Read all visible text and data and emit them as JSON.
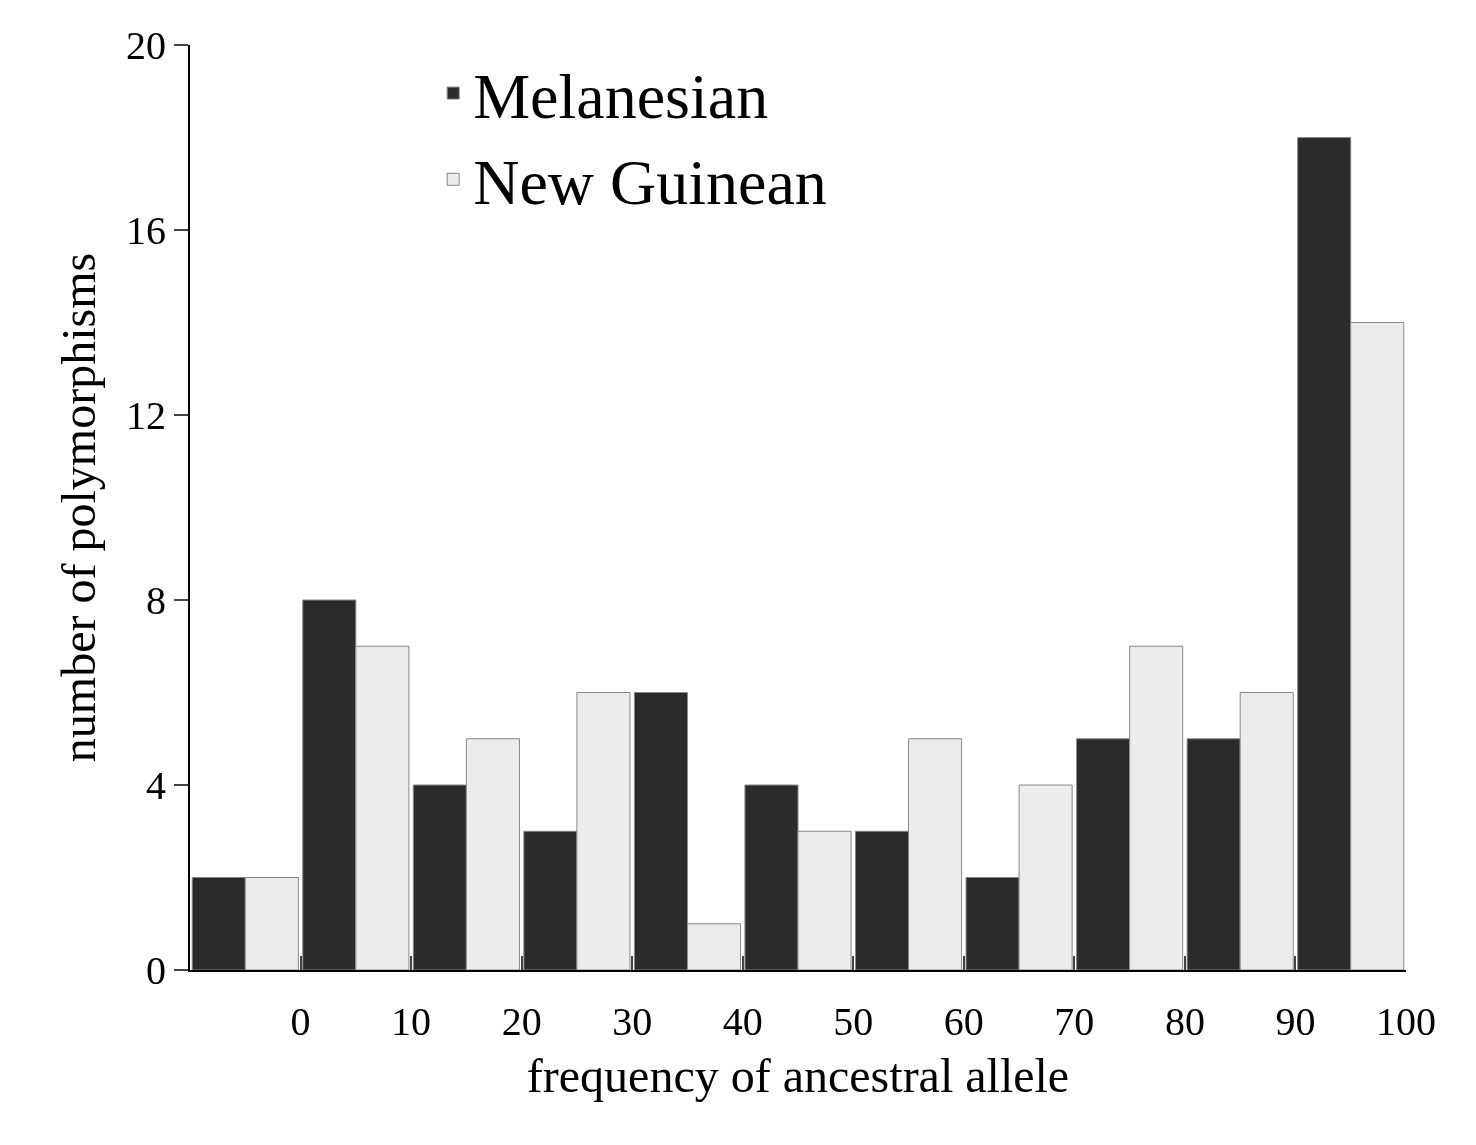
{
  "chart_data": {
    "type": "bar",
    "xlabel": "frequency of ancestral allele",
    "ylabel": "number of polymorphisms",
    "x": [
      -5,
      5,
      15,
      25,
      35,
      45,
      55,
      65,
      75,
      85,
      95
    ],
    "series": [
      {
        "name": "Melanesian",
        "color": "#2b2b2b",
        "values": [
          2,
          8,
          4,
          3,
          6,
          4,
          3,
          2,
          5,
          5,
          18
        ]
      },
      {
        "name": "New Guinean",
        "color": "#ececec",
        "values": [
          2,
          7,
          5,
          6,
          1,
          3,
          5,
          4,
          7,
          6,
          14
        ]
      }
    ],
    "xlim": [
      -10,
      100
    ],
    "xticks": [
      0,
      10,
      20,
      30,
      40,
      50,
      60,
      70,
      80,
      90,
      100
    ],
    "ylim": [
      0,
      20
    ],
    "yticks": [
      0,
      4,
      8,
      12,
      16,
      20
    ],
    "legend": "top left"
  }
}
